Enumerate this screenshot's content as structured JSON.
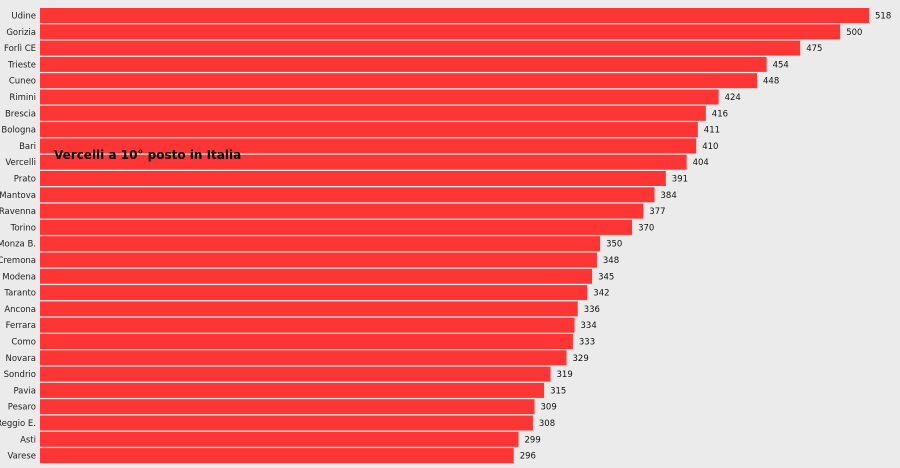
{
  "chart_data": {
    "type": "bar",
    "orientation": "horizontal",
    "categories": [
      "Udine",
      "Gorizia",
      "Forlì CE",
      "Trieste",
      "Cuneo",
      "Rimini",
      "Brescia",
      "Bologna",
      "Bari",
      "Vercelli",
      "Prato",
      "Mantova",
      "Ravenna",
      "Torino",
      "Monza B.",
      "Cremona",
      "Modena",
      "Taranto",
      "Ancona",
      "Ferrara",
      "Como",
      "Novara",
      "Sondrio",
      "Pavia",
      "Pesaro",
      "Reggio E.",
      "Asti",
      "Varese"
    ],
    "values": [
      518,
      500,
      475,
      454,
      448,
      424,
      416,
      411,
      410,
      404,
      391,
      384,
      377,
      370,
      350,
      348,
      345,
      342,
      336,
      334,
      333,
      329,
      319,
      315,
      309,
      308,
      299,
      296
    ],
    "annotation": "Vercelli a 10° posto in Italia",
    "xlim": [
      0,
      518
    ],
    "legend": "none",
    "grid": false,
    "bar_color": "#fe3535",
    "background": "#ebebeb"
  }
}
